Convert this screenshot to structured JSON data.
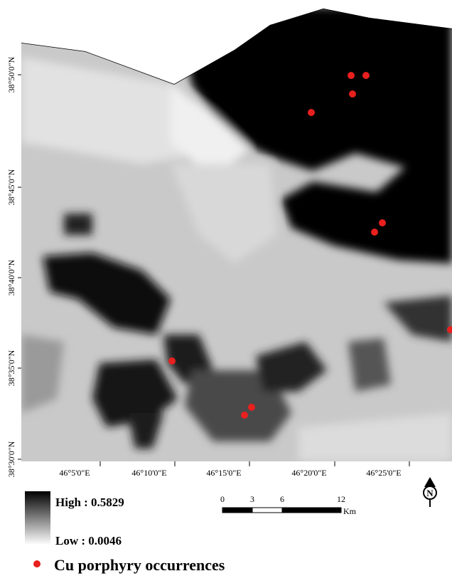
{
  "map": {
    "lat_labels": [
      "38°50'0\"N",
      "38°45'0\"N",
      "38°40'0\"N",
      "38°35'0\"N",
      "38°30'0\"N"
    ],
    "lon_labels": [
      "46°5'0\"E",
      "46°10'0\"E",
      "46°15'0\"E",
      "46°20'0\"E",
      "46°25'0\"E"
    ],
    "north": "N"
  },
  "legend": {
    "high": "High : 0.5829",
    "low": "Low : 0.0046",
    "occurrences": "Cu porphyry occurrences"
  },
  "scale_bar": {
    "ticks": [
      "0",
      "3",
      "6",
      "12"
    ],
    "unit": "Km"
  }
}
